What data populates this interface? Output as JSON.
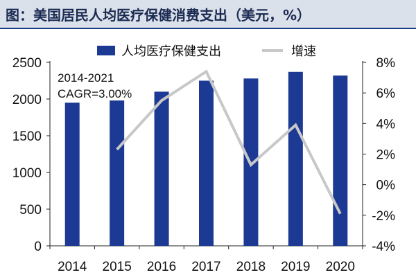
{
  "header": {
    "title": "图：美国居民人均医疗保健消费支出（美元，%）"
  },
  "chart_data": {
    "type": "bar+line",
    "title": "图：美国居民人均医疗保健消费支出（美元，%）",
    "categories": [
      "2014",
      "2015",
      "2016",
      "2017",
      "2018",
      "2019",
      "2020"
    ],
    "series": [
      {
        "name": "人均医疗保健支出",
        "type": "bar",
        "axis": "left",
        "color": "#1c3a94",
        "values": [
          1950,
          1980,
          2100,
          2250,
          2280,
          2370,
          2320
        ]
      },
      {
        "name": "增速",
        "type": "line",
        "axis": "right",
        "unit": "%",
        "color": "#c8c8c8",
        "values": [
          null,
          2.3,
          5.5,
          7.4,
          1.3,
          3.9,
          -1.9
        ]
      }
    ],
    "left_axis": {
      "min": 0,
      "max": 2500,
      "ticks": [
        0,
        500,
        1000,
        1500,
        2000,
        2500
      ],
      "tick_labels": [
        "0",
        "500",
        "1000",
        "1500",
        "2000",
        "2500"
      ]
    },
    "right_axis": {
      "min": -4,
      "max": 8,
      "ticks": [
        -4,
        -2,
        0,
        2,
        4,
        6,
        8
      ],
      "tick_labels": [
        "-4%",
        "-2%",
        "0%",
        "2%",
        "4%",
        "6%",
        "8%"
      ]
    },
    "legend": {
      "position": "top",
      "items": [
        "人均医疗保健支出",
        "增速"
      ]
    },
    "annotation": {
      "lines": [
        "2014-2021",
        "CAGR=3.00%"
      ]
    },
    "grid": false
  }
}
